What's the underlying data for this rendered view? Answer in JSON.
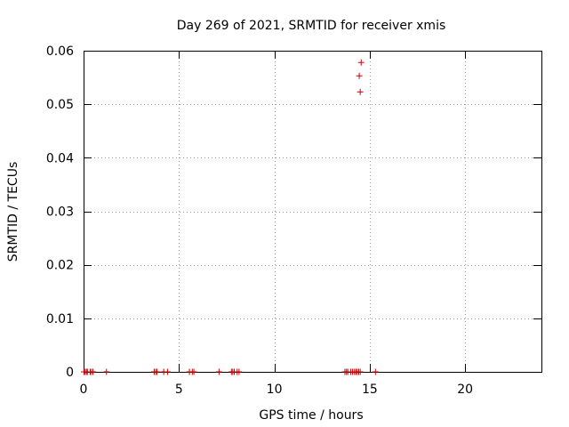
{
  "chart_data": {
    "type": "scatter",
    "title": "Day 269 of 2021, SRMTID for receiver xmis",
    "xlabel": "GPS time / hours",
    "ylabel": "SRMTID / TECUs",
    "xlim": [
      0,
      24
    ],
    "ylim": [
      0,
      0.06
    ],
    "xticks": [
      0,
      5,
      10,
      15,
      20
    ],
    "xtick_labels": [
      "0",
      "5",
      "10",
      "15",
      "20"
    ],
    "yticks": [
      0,
      0.01,
      0.02,
      0.03,
      0.04,
      0.05,
      0.06
    ],
    "ytick_labels": [
      "0",
      "0.01",
      "0.02",
      "0.03",
      "0.04",
      "0.05",
      "0.06"
    ],
    "grid": true,
    "marker": "+",
    "color": "#cc0000",
    "points": [
      {
        "x": 0.02,
        "y": 0
      },
      {
        "x": 0.08,
        "y": 0
      },
      {
        "x": 0.15,
        "y": 0
      },
      {
        "x": 0.2,
        "y": 0
      },
      {
        "x": 0.35,
        "y": 0
      },
      {
        "x": 0.42,
        "y": 0
      },
      {
        "x": 0.5,
        "y": 0
      },
      {
        "x": 1.2,
        "y": 0
      },
      {
        "x": 3.7,
        "y": 0
      },
      {
        "x": 3.78,
        "y": 0
      },
      {
        "x": 3.85,
        "y": 0
      },
      {
        "x": 4.2,
        "y": 0
      },
      {
        "x": 4.4,
        "y": 0
      },
      {
        "x": 5.55,
        "y": 0
      },
      {
        "x": 5.7,
        "y": 0
      },
      {
        "x": 5.78,
        "y": 0
      },
      {
        "x": 7.1,
        "y": 0
      },
      {
        "x": 7.75,
        "y": 0
      },
      {
        "x": 7.82,
        "y": 0
      },
      {
        "x": 7.9,
        "y": 0
      },
      {
        "x": 8.05,
        "y": 0
      },
      {
        "x": 8.15,
        "y": 0
      },
      {
        "x": 13.7,
        "y": 0
      },
      {
        "x": 13.78,
        "y": 0
      },
      {
        "x": 13.85,
        "y": 0
      },
      {
        "x": 14.0,
        "y": 0
      },
      {
        "x": 14.1,
        "y": 0
      },
      {
        "x": 14.2,
        "y": 0
      },
      {
        "x": 14.28,
        "y": 0
      },
      {
        "x": 14.35,
        "y": 0
      },
      {
        "x": 14.42,
        "y": 0
      },
      {
        "x": 14.5,
        "y": 0
      },
      {
        "x": 15.3,
        "y": 0
      },
      {
        "x": 14.5,
        "y": 0.0523
      },
      {
        "x": 14.45,
        "y": 0.0553
      },
      {
        "x": 14.55,
        "y": 0.0578
      }
    ]
  }
}
